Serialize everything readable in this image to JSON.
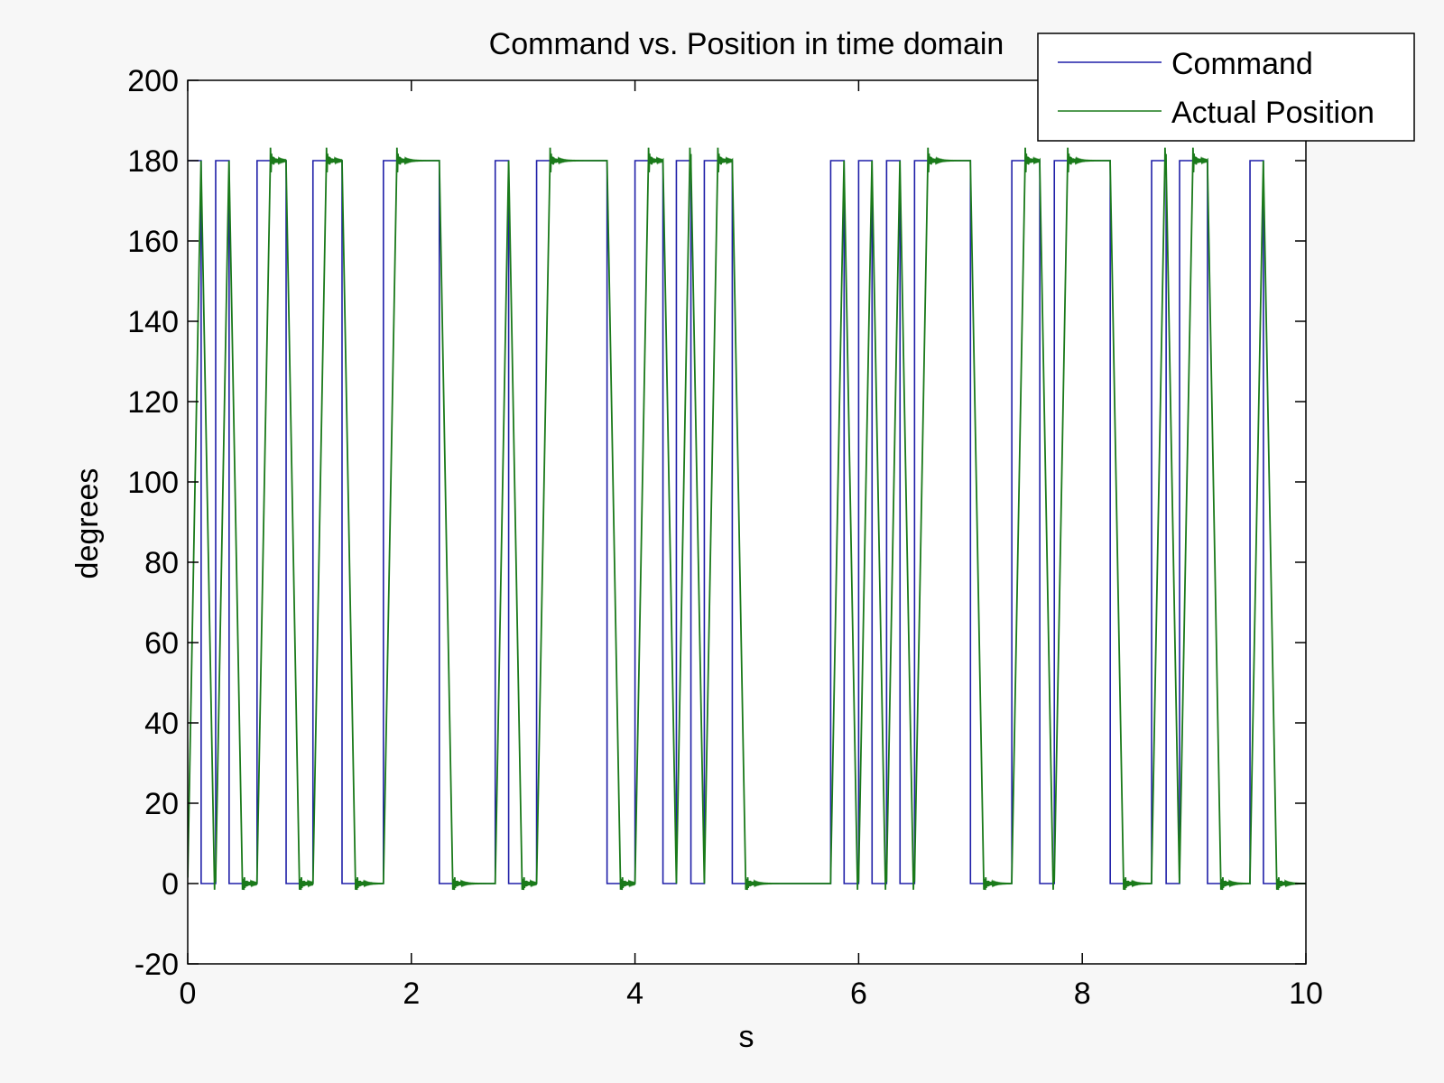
{
  "chart_data": {
    "type": "line",
    "title": "Command vs. Position in time domain",
    "xlabel": "s",
    "ylabel": "degrees",
    "xlim": [
      0,
      10
    ],
    "ylim": [
      -20,
      200
    ],
    "xticks": [
      0,
      2,
      4,
      6,
      8,
      10
    ],
    "yticks": [
      -20,
      0,
      20,
      40,
      60,
      80,
      100,
      120,
      140,
      160,
      180,
      200
    ],
    "xtick_labels": [
      "0",
      "2",
      "4",
      "6",
      "8",
      "10"
    ],
    "ytick_labels": [
      "-20",
      "0",
      "20",
      "40",
      "60",
      "80",
      "100",
      "120",
      "140",
      "160",
      "180",
      "200"
    ],
    "grid": false,
    "legend_position": "top-right",
    "series": [
      {
        "name": "Command",
        "color": "#1f1fa8",
        "style": "step",
        "high_intervals": [
          [
            0.0,
            0.12
          ],
          [
            0.25,
            0.37
          ],
          [
            0.62,
            0.88
          ],
          [
            1.12,
            1.38
          ],
          [
            1.75,
            2.25
          ],
          [
            2.75,
            2.87
          ],
          [
            3.12,
            3.75
          ],
          [
            4.0,
            4.25
          ],
          [
            4.37,
            4.5
          ],
          [
            4.62,
            4.87
          ],
          [
            5.75,
            5.87
          ],
          [
            6.0,
            6.12
          ],
          [
            6.25,
            6.37
          ],
          [
            6.5,
            7.0
          ],
          [
            7.37,
            7.62
          ],
          [
            7.75,
            8.25
          ],
          [
            8.62,
            8.75
          ],
          [
            8.87,
            9.12
          ],
          [
            9.5,
            9.62
          ]
        ],
        "high_value": 180,
        "low_value": 0
      },
      {
        "name": "Actual Position",
        "color": "#1a7a1a",
        "style": "second-order-response",
        "overshoot_peak": 183,
        "undershoot_min": -3,
        "rise_time_s": 0.12,
        "high_value": 180,
        "low_value": 0
      }
    ]
  }
}
